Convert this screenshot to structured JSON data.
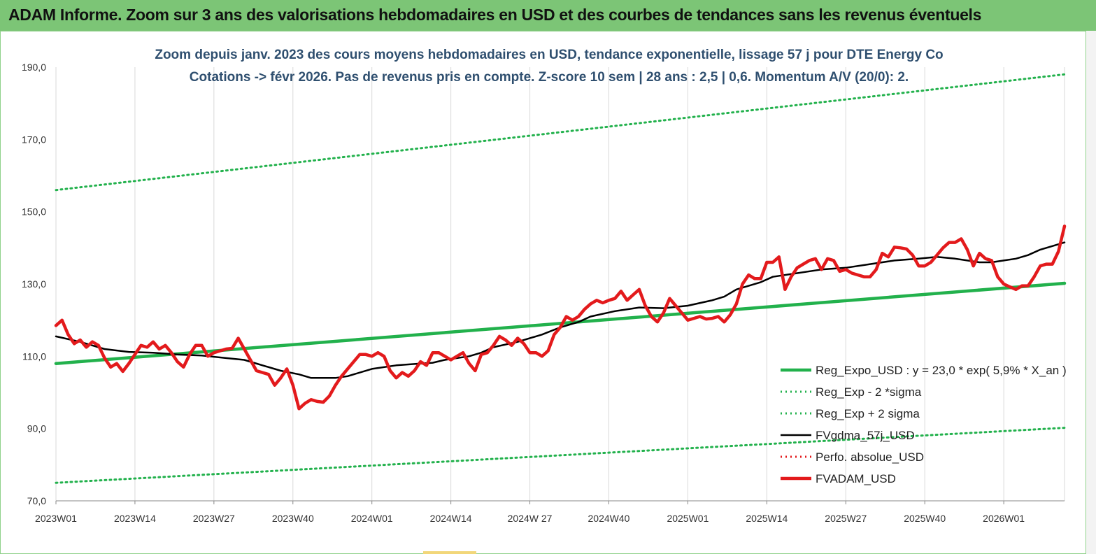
{
  "header": {
    "title": "ADAM Informe. Zoom sur 3 ans des valorisations hebdomadaires en USD et des courbes de tendances sans les revenus éventuels"
  },
  "colors": {
    "banner": "#7cc576",
    "trend": "#22b14c",
    "bands": "#22b14c",
    "smooth": "#000000",
    "perf": "#e31a1c",
    "price": "#e31a1c",
    "grid": "#d9d9d9"
  },
  "chart_data": {
    "type": "line",
    "title": "Zoom depuis janv. 2023 des cours moyens hebdomadaires en USD, tendance exponentielle, lissage 57 j pour DTE Energy Co",
    "subtitle": "Cotations -> févr 2026. Pas de revenus pris en compte. Z-score 10 sem | 28 ans : 2,5 | 0,6. Momentum A/V (20/0): 2.",
    "ylim": [
      70,
      190
    ],
    "y_ticks": [
      "70,0",
      "90,0",
      "110,0",
      "130,0",
      "150,0",
      "170,0",
      "190,0"
    ],
    "x_ticks": [
      "2023W01",
      "2023W14",
      "2023W27",
      "2023W40",
      "2024W01",
      "2024W14",
      "2024W 27",
      "2024W40",
      "2025W01",
      "2025W14",
      "2025W27",
      "2025W40",
      "2026W01"
    ],
    "x_tick_week_index": [
      0,
      13,
      26,
      39,
      52,
      65,
      78,
      91,
      104,
      117,
      130,
      143,
      156
    ],
    "x_range_weeks": [
      0,
      166
    ],
    "grid": "vertical",
    "legend_position": "bottom-right",
    "series": [
      {
        "name": "Reg_Expo_USD : y = 23,0 * exp( 5,9% *  X_an )",
        "style": "thick-solid",
        "color": "#22b14c",
        "points": [
          [
            0,
            108.0
          ],
          [
            166,
            130.2
          ]
        ]
      },
      {
        "name": "Reg_Exp - 2 *sigma",
        "style": "dotted",
        "color": "#22b14c",
        "points": [
          [
            0,
            75.0
          ],
          [
            166,
            90.2
          ]
        ]
      },
      {
        "name": "Reg_Exp + 2 sigma",
        "style": "dotted",
        "color": "#22b14c",
        "points": [
          [
            0,
            156.0
          ],
          [
            166,
            188.0
          ]
        ]
      },
      {
        "name": "FVgdma_57j_USD",
        "style": "solid",
        "color": "#000000",
        "points": [
          [
            0,
            115.5
          ],
          [
            4,
            114
          ],
          [
            8,
            112
          ],
          [
            12,
            111.2
          ],
          [
            16,
            111
          ],
          [
            20,
            110.5
          ],
          [
            24,
            110.2
          ],
          [
            28,
            109.5
          ],
          [
            31,
            109
          ],
          [
            34,
            107.5
          ],
          [
            37,
            106
          ],
          [
            40,
            105
          ],
          [
            42,
            104
          ],
          [
            46,
            104
          ],
          [
            48,
            104.5
          ],
          [
            52,
            106.5
          ],
          [
            56,
            107.5
          ],
          [
            60,
            108
          ],
          [
            62,
            108.2
          ],
          [
            64,
            109
          ],
          [
            68,
            110
          ],
          [
            70,
            111
          ],
          [
            72,
            112.5
          ],
          [
            76,
            114
          ],
          [
            80,
            116
          ],
          [
            83,
            118
          ],
          [
            86,
            119.5
          ],
          [
            88,
            121
          ],
          [
            92,
            122.5
          ],
          [
            96,
            123.5
          ],
          [
            100,
            123.3
          ],
          [
            104,
            124
          ],
          [
            108,
            125.5
          ],
          [
            110,
            126.5
          ],
          [
            112,
            128.5
          ],
          [
            116,
            130.5
          ],
          [
            118,
            132
          ],
          [
            122,
            133
          ],
          [
            126,
            134
          ],
          [
            130,
            134.5
          ],
          [
            134,
            135.5
          ],
          [
            138,
            136.5
          ],
          [
            142,
            137
          ],
          [
            145,
            137.5
          ],
          [
            148,
            137
          ],
          [
            150,
            136.5
          ],
          [
            152,
            136
          ],
          [
            154,
            136
          ],
          [
            156,
            136.5
          ],
          [
            158,
            137
          ],
          [
            160,
            138
          ],
          [
            162,
            139.5
          ],
          [
            164,
            140.5
          ],
          [
            166,
            141.5
          ]
        ]
      },
      {
        "name": "Perfo. absolue_USD",
        "style": "dotted",
        "color": "#e31a1c",
        "points": []
      },
      {
        "name": "FVADAM_USD",
        "style": "thick-solid",
        "color": "#e31a1c",
        "points": [
          [
            0,
            118.5
          ],
          [
            1,
            120
          ],
          [
            2,
            116
          ],
          [
            3,
            113.5
          ],
          [
            4,
            114.5
          ],
          [
            5,
            112.5
          ],
          [
            6,
            114
          ],
          [
            7,
            113
          ],
          [
            8,
            109.5
          ],
          [
            9,
            107
          ],
          [
            10,
            108
          ],
          [
            11,
            105.8
          ],
          [
            12,
            108
          ],
          [
            13,
            110.5
          ],
          [
            14,
            113
          ],
          [
            15,
            112.5
          ],
          [
            16,
            114
          ],
          [
            17,
            112
          ],
          [
            18,
            113
          ],
          [
            19,
            111
          ],
          [
            20,
            108.5
          ],
          [
            21,
            107
          ],
          [
            22,
            110.5
          ],
          [
            23,
            113
          ],
          [
            24,
            113
          ],
          [
            25,
            110
          ],
          [
            26,
            111
          ],
          [
            27,
            111.5
          ],
          [
            28,
            112
          ],
          [
            29,
            112.2
          ],
          [
            30,
            115
          ],
          [
            31,
            112
          ],
          [
            32,
            109
          ],
          [
            33,
            106
          ],
          [
            34,
            105.5
          ],
          [
            35,
            105
          ],
          [
            36,
            102
          ],
          [
            37,
            104
          ],
          [
            38,
            106.5
          ],
          [
            39,
            102
          ],
          [
            40,
            95.5
          ],
          [
            41,
            97
          ],
          [
            42,
            98
          ],
          [
            43,
            97.5
          ],
          [
            44,
            97.3
          ],
          [
            45,
            99
          ],
          [
            46,
            102
          ],
          [
            47,
            104.5
          ],
          [
            48,
            106.5
          ],
          [
            49,
            108.5
          ],
          [
            50,
            110.5
          ],
          [
            51,
            110.5
          ],
          [
            52,
            110
          ],
          [
            53,
            111
          ],
          [
            54,
            110
          ],
          [
            55,
            106
          ],
          [
            56,
            104
          ],
          [
            57,
            105.5
          ],
          [
            58,
            104.5
          ],
          [
            59,
            106
          ],
          [
            60,
            108.5
          ],
          [
            61,
            107.5
          ],
          [
            62,
            111
          ],
          [
            63,
            111
          ],
          [
            64,
            110
          ],
          [
            65,
            109
          ],
          [
            66,
            110
          ],
          [
            67,
            111
          ],
          [
            68,
            108
          ],
          [
            69,
            106
          ],
          [
            70,
            110.5
          ],
          [
            71,
            111
          ],
          [
            72,
            113
          ],
          [
            73,
            115.5
          ],
          [
            74,
            114.5
          ],
          [
            75,
            113
          ],
          [
            76,
            115
          ],
          [
            77,
            113.5
          ],
          [
            78,
            111
          ],
          [
            79,
            111
          ],
          [
            80,
            110
          ],
          [
            81,
            111.5
          ],
          [
            82,
            116
          ],
          [
            83,
            118
          ],
          [
            84,
            121
          ],
          [
            85,
            120
          ],
          [
            86,
            121
          ],
          [
            87,
            123
          ],
          [
            88,
            124.5
          ],
          [
            89,
            125.5
          ],
          [
            90,
            124.8
          ],
          [
            91,
            125.5
          ],
          [
            92,
            126
          ],
          [
            93,
            128
          ],
          [
            94,
            125.5
          ],
          [
            95,
            127
          ],
          [
            96,
            128.5
          ],
          [
            97,
            124
          ],
          [
            98,
            121
          ],
          [
            99,
            119.5
          ],
          [
            100,
            122
          ],
          [
            101,
            126
          ],
          [
            102,
            124
          ],
          [
            103,
            122
          ],
          [
            104,
            120
          ],
          [
            105,
            120.5
          ],
          [
            106,
            121
          ],
          [
            107,
            120.3
          ],
          [
            108,
            120.5
          ],
          [
            109,
            121
          ],
          [
            110,
            119.5
          ],
          [
            111,
            121.5
          ],
          [
            112,
            124.5
          ],
          [
            113,
            130
          ],
          [
            114,
            132.5
          ],
          [
            115,
            131.5
          ],
          [
            116,
            131.5
          ],
          [
            117,
            136
          ],
          [
            118,
            136
          ],
          [
            119,
            137.5
          ],
          [
            120,
            128.5
          ],
          [
            121,
            132
          ],
          [
            122,
            134.5
          ],
          [
            123,
            135.5
          ],
          [
            124,
            136.5
          ],
          [
            125,
            137
          ],
          [
            126,
            134
          ],
          [
            127,
            137
          ],
          [
            128,
            136.5
          ],
          [
            129,
            133.5
          ],
          [
            130,
            134
          ],
          [
            131,
            133
          ],
          [
            132,
            132.5
          ],
          [
            133,
            132
          ],
          [
            134,
            132
          ],
          [
            135,
            134
          ],
          [
            136,
            138.5
          ],
          [
            137,
            137.5
          ],
          [
            138,
            140.2
          ],
          [
            139,
            140
          ],
          [
            140,
            139.7
          ],
          [
            141,
            138
          ],
          [
            142,
            135
          ],
          [
            143,
            135
          ],
          [
            144,
            136
          ],
          [
            145,
            138
          ],
          [
            146,
            140
          ],
          [
            147,
            141.5
          ],
          [
            148,
            141.5
          ],
          [
            149,
            142.5
          ],
          [
            150,
            139.5
          ],
          [
            151,
            135
          ],
          [
            152,
            138.5
          ],
          [
            153,
            137
          ],
          [
            154,
            136.5
          ],
          [
            155,
            132
          ],
          [
            156,
            130
          ],
          [
            157,
            129.2
          ],
          [
            158,
            128.5
          ],
          [
            159,
            129.5
          ],
          [
            160,
            129.5
          ],
          [
            161,
            132
          ],
          [
            162,
            135
          ],
          [
            163,
            135.5
          ],
          [
            164,
            135.5
          ],
          [
            165,
            139
          ],
          [
            166,
            146
          ]
        ]
      }
    ]
  }
}
